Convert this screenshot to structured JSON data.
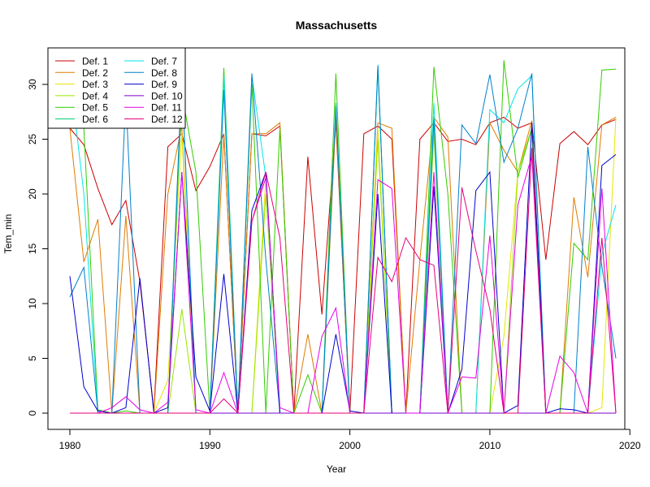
{
  "chart_data": {
    "type": "line",
    "title": "Massachusetts",
    "xlabel": "Year",
    "ylabel": "Tem_min",
    "xlim": [
      1980,
      2019
    ],
    "ylim": [
      0,
      32
    ],
    "x_ticks": [
      1980,
      1990,
      2000,
      2010,
      2020
    ],
    "y_ticks": [
      0,
      5,
      10,
      15,
      20,
      25,
      30
    ],
    "grid": false,
    "legend_position": "top-left",
    "x": [
      1980,
      1981,
      1982,
      1983,
      1984,
      1985,
      1986,
      1987,
      1988,
      1989,
      1990,
      1991,
      1992,
      1993,
      1994,
      1995,
      1996,
      1997,
      1998,
      1999,
      2000,
      2001,
      2002,
      2003,
      2004,
      2005,
      2006,
      2007,
      2008,
      2009,
      2010,
      2011,
      2012,
      2013,
      2014,
      2015,
      2016,
      2017,
      2018,
      2019
    ],
    "series": [
      {
        "name": "Def. 1",
        "color": "#CC0000",
        "values": [
          26,
          24.5,
          20.5,
          17.2,
          19.4,
          12,
          0.2,
          24.3,
          25.5,
          20.3,
          22.5,
          25.5,
          0,
          25.5,
          25.3,
          26.2,
          0,
          23.4,
          9,
          26.5,
          0,
          25.5,
          26.2,
          25,
          0,
          25,
          26.5,
          24.8,
          25,
          24.5,
          26.5,
          27,
          26,
          26.5,
          14,
          24.6,
          25.7,
          24.5,
          26.3,
          26.8
        ]
      },
      {
        "name": "Def. 2",
        "color": "#E07B00",
        "values": [
          26,
          13.8,
          17.7,
          0,
          18,
          0,
          0,
          20,
          26.2,
          0,
          0,
          25.5,
          0,
          25.5,
          25.5,
          26.5,
          0,
          7.2,
          0,
          27,
          0,
          0,
          26.5,
          26,
          0,
          14,
          27,
          25.2,
          0,
          0,
          26.5,
          24,
          22,
          26.7,
          0,
          0,
          19.7,
          12.4,
          26.3,
          27
        ]
      },
      {
        "name": "Def. 3",
        "color": "#E6E600",
        "values": [
          0,
          0,
          0,
          0,
          0,
          0,
          0,
          3,
          25.5,
          0,
          0,
          0,
          0,
          0,
          21.5,
          0,
          0,
          0,
          0,
          0,
          0,
          0,
          26,
          0,
          0,
          0,
          26.5,
          0,
          0,
          0,
          0,
          7,
          22,
          26,
          0,
          0,
          0,
          0,
          0.5,
          27
        ]
      },
      {
        "name": "Def. 4",
        "color": "#99E600",
        "values": [
          0,
          0,
          0,
          0,
          0,
          0,
          0,
          0,
          9.5,
          0,
          0,
          0,
          0,
          0,
          20,
          0,
          0,
          0,
          0,
          0,
          0,
          0,
          25,
          0,
          0,
          0,
          25.5,
          0,
          0,
          0,
          0,
          0,
          22,
          26,
          0,
          0,
          0,
          0,
          0,
          0
        ]
      },
      {
        "name": "Def. 5",
        "color": "#33CC00",
        "values": [
          30,
          26,
          0.3,
          0,
          0.2,
          0,
          0,
          0,
          29.2,
          22,
          0,
          31.5,
          0,
          30,
          0,
          26,
          0,
          3.5,
          0,
          31,
          0,
          0,
          31.5,
          0,
          0,
          0,
          31.6,
          20,
          0,
          0,
          0,
          32.2,
          21.5,
          26,
          0,
          0,
          15.5,
          14,
          31.3,
          31.4
        ]
      },
      {
        "name": "Def. 6",
        "color": "#00CC77",
        "values": [
          0,
          0,
          0,
          0,
          0,
          0,
          0,
          0,
          0,
          0,
          0,
          0,
          0,
          0,
          0,
          0,
          0,
          0,
          0,
          0,
          0,
          0,
          0,
          0,
          0,
          0,
          0,
          0,
          0,
          0,
          0,
          0,
          0,
          0,
          0,
          0,
          0,
          0,
          0,
          0
        ]
      },
      {
        "name": "Def. 7",
        "color": "#00E6E6",
        "values": [
          31,
          20,
          0,
          0,
          0,
          0,
          0,
          0,
          30.5,
          0,
          0,
          30.8,
          0,
          30.8,
          21.5,
          0,
          0,
          0,
          0,
          28.3,
          0,
          0,
          31.8,
          0,
          0,
          0,
          28.3,
          0,
          0,
          0,
          27.7,
          26.5,
          29.6,
          30.8,
          0,
          0,
          0,
          0,
          14.5,
          19
        ]
      },
      {
        "name": "Def. 8",
        "color": "#0080CC",
        "values": [
          10.6,
          13.3,
          0,
          0,
          29,
          0,
          0,
          0,
          31,
          0,
          0,
          29.5,
          0,
          31,
          14,
          0,
          0,
          0,
          0,
          28,
          0,
          0,
          31.7,
          0,
          0,
          0,
          26.8,
          0,
          26.3,
          24.6,
          30.9,
          22.9,
          26,
          31,
          0,
          0,
          0,
          24.3,
          13.4,
          5
        ]
      },
      {
        "name": "Def. 9",
        "color": "#0000CC",
        "values": [
          12.5,
          2.4,
          0.2,
          0,
          0.5,
          12.3,
          0,
          0.5,
          22,
          3.3,
          0.2,
          12.7,
          0,
          18.5,
          22,
          0,
          0,
          0,
          0,
          7.2,
          0.2,
          0,
          20,
          0,
          0,
          0,
          20.7,
          0,
          4,
          20.3,
          22,
          0,
          0.7,
          26.5,
          0,
          0.4,
          0.3,
          0,
          22.6,
          23.6
        ]
      },
      {
        "name": "Def. 10",
        "color": "#7A00CC",
        "values": [
          0,
          0,
          0,
          0,
          0,
          0,
          0,
          0,
          0,
          0,
          0,
          0,
          0,
          0,
          0,
          0,
          0,
          0,
          0,
          0,
          0,
          0,
          0,
          0,
          0,
          0,
          0,
          0,
          0,
          0,
          0,
          0,
          0,
          0,
          0,
          0,
          0,
          0,
          0,
          0
        ]
      },
      {
        "name": "Def. 11",
        "color": "#E600E6",
        "values": [
          0,
          0,
          0,
          0.5,
          1.5,
          0.3,
          0,
          1,
          22,
          0.3,
          0,
          3.7,
          0,
          17.5,
          21.5,
          0.5,
          0,
          0,
          7,
          9.6,
          0,
          0,
          21.3,
          20.5,
          0,
          0,
          22,
          0,
          3.3,
          3.2,
          16.2,
          0,
          19,
          23.5,
          0,
          5.2,
          3.7,
          0,
          20.5,
          0
        ]
      },
      {
        "name": "Def. 12",
        "color": "#E6007A",
        "values": [
          0,
          0,
          0,
          0,
          0,
          0,
          0,
          0,
          0,
          0,
          0,
          1.3,
          0,
          17.5,
          22,
          16,
          0,
          0,
          0,
          0,
          0,
          0,
          14.2,
          12,
          16,
          14,
          13.5,
          0,
          20.6,
          14.8,
          9.5,
          0,
          0,
          24.2,
          0,
          0,
          0,
          0,
          16,
          0
        ]
      }
    ]
  }
}
